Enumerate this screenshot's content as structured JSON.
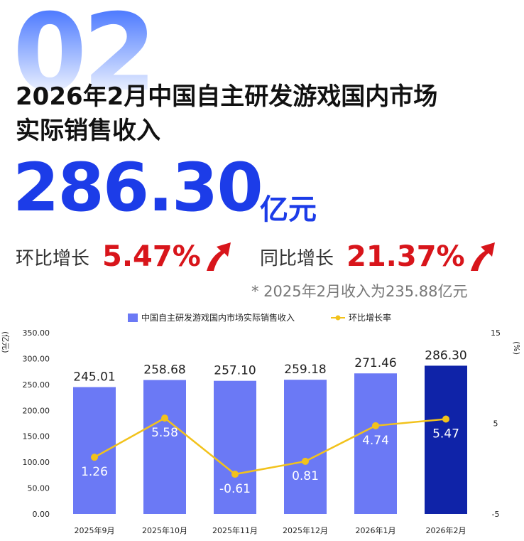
{
  "section_number": "02",
  "headline": [
    "2026年2月中国自主研发游戏国内市场",
    "实际销售收入"
  ],
  "big_value": "286.30",
  "big_unit": "亿元",
  "mom": {
    "label": "环比增长",
    "value": "5.47%"
  },
  "yoy": {
    "label": "同比增长",
    "value": "21.37%"
  },
  "note": "* 2025年2月收入为235.88亿元",
  "colors": {
    "bar": "#6b79f5",
    "bar_highlight": "#0f23a8",
    "line": "#f2c21b",
    "accent": "#1c3ce8",
    "up": "#d8151b"
  },
  "chart_data": {
    "type": "bar",
    "categories": [
      "2025年9月",
      "2025年10月",
      "2025年11月",
      "2025年12月",
      "2026年1月",
      "2026年2月"
    ],
    "series": [
      {
        "name": "中国自主研发游戏国内市场实际销售收入",
        "type": "bar",
        "axis": "left",
        "values": [
          245.01,
          258.68,
          257.1,
          259.18,
          271.46,
          286.3
        ],
        "labels": [
          "245.01",
          "258.68",
          "257.10",
          "259.18",
          "271.46",
          "286.30"
        ]
      },
      {
        "name": "环比增长率",
        "type": "line",
        "axis": "right",
        "values": [
          1.26,
          5.58,
          -0.61,
          0.81,
          4.74,
          5.47
        ],
        "labels": [
          "1.26",
          "5.58",
          "-0.61",
          "0.81",
          "4.74",
          "5.47"
        ]
      }
    ],
    "y_left": {
      "label": "(亿元)",
      "ticks": [
        "0.00",
        "50.00",
        "100.00",
        "150.00",
        "200.00",
        "250.00",
        "300.00",
        "350.00"
      ],
      "min": 0,
      "max": 350
    },
    "y_right": {
      "label": "(%)",
      "ticks": [
        "-5",
        "5",
        "15"
      ],
      "min": -5,
      "max": 15
    },
    "legend_position": "top"
  }
}
